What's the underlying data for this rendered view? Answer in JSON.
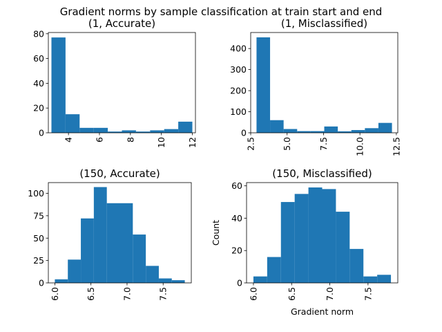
{
  "figure": {
    "title": "Gradient norms by sample classification at train start and end"
  },
  "colors": {
    "bar": "#1f77b4",
    "axis": "#000000",
    "background": "#ffffff"
  },
  "chart_data": [
    {
      "type": "bar",
      "subtype": "histogram",
      "title": "(1, Accurate)",
      "xlabel": "",
      "ylabel": "",
      "bin_edges": [
        2.9,
        3.81,
        4.72,
        5.63,
        6.54,
        7.45,
        8.36,
        9.27,
        10.18,
        11.09,
        12.0
      ],
      "values": [
        77,
        15,
        4,
        4,
        1,
        2,
        1,
        2,
        3,
        9
      ],
      "xlim": [
        2.7,
        12.2
      ],
      "ylim": [
        0,
        81
      ],
      "xticks": [
        4,
        6,
        8,
        10,
        12
      ],
      "xtick_labels": [
        "4",
        "6",
        "8",
        "10",
        "12"
      ],
      "xtick_rotation": 90,
      "yticks": [
        0,
        20,
        40,
        60,
        80
      ],
      "ytick_labels": [
        "0",
        "20",
        "40",
        "60",
        "80"
      ]
    },
    {
      "type": "bar",
      "subtype": "histogram",
      "title": "(1, Misclassified)",
      "xlabel": "",
      "ylabel": "",
      "bin_edges": [
        2.9,
        3.83,
        4.76,
        5.69,
        6.62,
        7.55,
        8.48,
        9.41,
        10.34,
        11.27,
        12.2
      ],
      "values": [
        453,
        60,
        18,
        8,
        8,
        30,
        7,
        13,
        22,
        47
      ],
      "xlim": [
        2.5,
        12.6
      ],
      "ylim": [
        0,
        476
      ],
      "xticks": [
        2.5,
        5.0,
        7.5,
        10.0,
        12.5
      ],
      "xtick_labels": [
        "2.5",
        "5.0",
        "7.5",
        "10.0",
        "12.5"
      ],
      "xtick_rotation": 90,
      "yticks": [
        0,
        100,
        200,
        300,
        400
      ],
      "ytick_labels": [
        "0",
        "100",
        "200",
        "300",
        "400"
      ]
    },
    {
      "type": "bar",
      "subtype": "histogram",
      "title": "(150, Accurate)",
      "xlabel": "",
      "ylabel": "",
      "bin_edges": [
        6.0,
        6.18,
        6.36,
        6.54,
        6.72,
        6.9,
        7.08,
        7.26,
        7.44,
        7.62,
        7.8
      ],
      "values": [
        4,
        26,
        72,
        107,
        89,
        89,
        54,
        19,
        5,
        3
      ],
      "xlim": [
        5.91,
        7.89
      ],
      "ylim": [
        0,
        112
      ],
      "xticks": [
        6.0,
        6.5,
        7.0,
        7.5
      ],
      "xtick_labels": [
        "6.0",
        "6.5",
        "7.0",
        "7.5"
      ],
      "xtick_rotation": 90,
      "yticks": [
        0,
        25,
        50,
        75,
        100
      ],
      "ytick_labels": [
        "0",
        "25",
        "50",
        "75",
        "100"
      ]
    },
    {
      "type": "bar",
      "subtype": "histogram",
      "title": "(150, Misclassified)",
      "xlabel": "Gradient norm",
      "ylabel": "Count",
      "bin_edges": [
        6.0,
        6.18,
        6.36,
        6.54,
        6.72,
        6.9,
        7.08,
        7.26,
        7.44,
        7.62,
        7.8
      ],
      "values": [
        4,
        16,
        50,
        55,
        59,
        58,
        44,
        21,
        4,
        5
      ],
      "xlim": [
        5.91,
        7.89
      ],
      "ylim": [
        0,
        62
      ],
      "xticks": [
        6.0,
        6.5,
        7.0,
        7.5
      ],
      "xtick_labels": [
        "6.0",
        "6.5",
        "7.0",
        "7.5"
      ],
      "xtick_rotation": 90,
      "yticks": [
        0,
        20,
        40,
        60
      ],
      "ytick_labels": [
        "0",
        "20",
        "40",
        "60"
      ]
    }
  ]
}
